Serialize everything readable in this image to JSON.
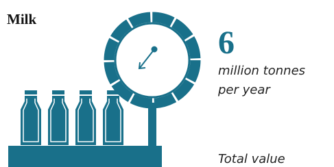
{
  "title": "Milk",
  "stat": {
    "value": 6,
    "unit_lines": [
      "million tonnes",
      "per year"
    ]
  },
  "footer": "Total value"
}
